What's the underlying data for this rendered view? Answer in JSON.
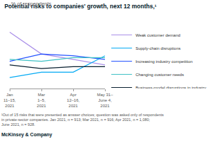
{
  "chart_data": {
    "type": "line",
    "title": "Potential risks to companies' growth, next 12 months,¹",
    "subtitle": "% of respondents",
    "categories": [
      "Jan\n11–15,\n2021",
      "Mar\n1–5,\n2021",
      "Apr\n12–16,\n2021",
      "May 31–\nJune 4,\n2021"
    ],
    "series": [
      {
        "name": "Weak customer demand",
        "color": "#a98ee8",
        "values": [
          41,
          29,
          26,
          23
        ]
      },
      {
        "name": "Supply-chain disruptions",
        "color": "#00a9f4",
        "values": [
          16,
          19,
          19,
          28
        ]
      },
      {
        "name": "Increasing industry competition",
        "color": "#2251ff",
        "values": [
          25,
          29,
          28,
          26
        ]
      },
      {
        "name": "Changing customer needs",
        "color": "#3ec1c5",
        "values": [
          26,
          25,
          27,
          27
        ]
      },
      {
        "name": "Business-model disruptions in industry",
        "color": "#051c2c",
        "values": [
          23,
          21,
          22,
          22
        ]
      }
    ],
    "ylim": [
      10,
      45
    ],
    "grid": false,
    "legend": "right",
    "tick_labels": "x",
    "footnote": [
      "¹Out of 15 risks that were presented as answer choices; question was asked only of respondents",
      "in private-sector companies. Jan 2021, n = 913; Mar 2021, n = 916; Apr 2021, n = 1,080;",
      "June 2021, n = 928."
    ],
    "source": "McKinsey & Company"
  }
}
